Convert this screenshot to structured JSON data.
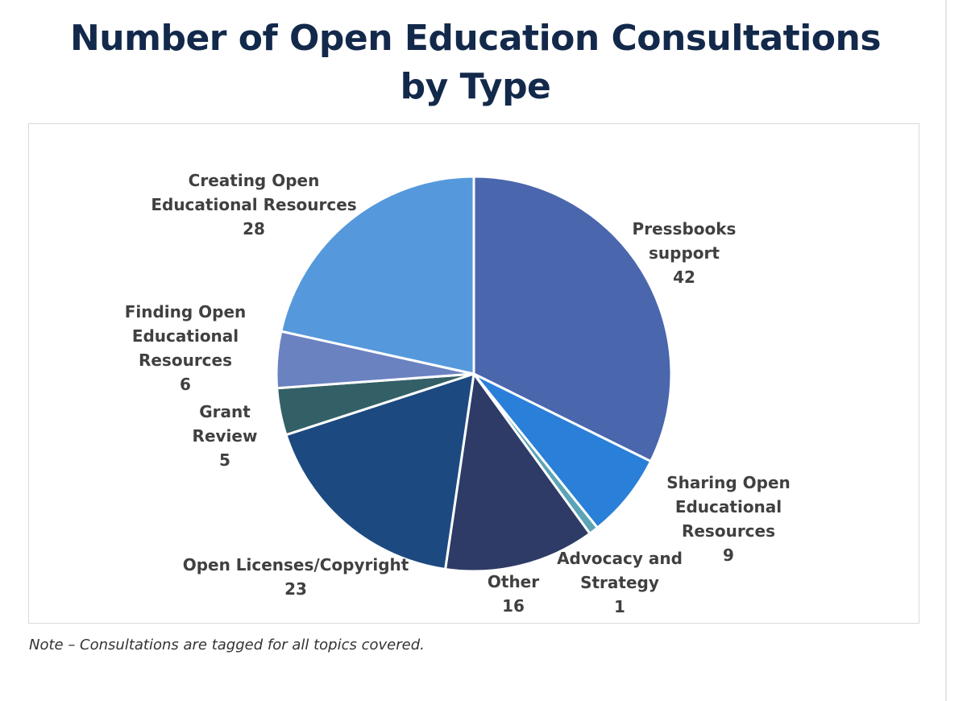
{
  "title": "Number of Open Education Consultations by Type",
  "note": "Note – Consultations are tagged for all topics covered.",
  "chart_data": {
    "type": "pie",
    "title": "Number of Open Education Consultations by Type",
    "start": "12 o'clock",
    "direction": "clockwise",
    "slices": [
      {
        "label_lines": [
          "Pressbooks",
          "support"
        ],
        "label": "Pressbooks support",
        "value": 42,
        "color": "#4a66ac"
      },
      {
        "label_lines": [
          "Sharing Open",
          "Educational",
          "Resources"
        ],
        "label": "Sharing Open Educational Resources",
        "value": 9,
        "color": "#2a7fd8"
      },
      {
        "label_lines": [
          "Advocacy and",
          "Strategy"
        ],
        "label": "Advocacy and Strategy",
        "value": 1,
        "color": "#5ba4b6"
      },
      {
        "label_lines": [
          "Other"
        ],
        "label": "Other",
        "value": 16,
        "color": "#2d3b66"
      },
      {
        "label_lines": [
          "Open Licenses/Copyright"
        ],
        "label": "Open Licenses/Copyright",
        "value": 23,
        "color": "#1c4a80"
      },
      {
        "label_lines": [
          "Grant",
          "Review"
        ],
        "label": "Grant Review",
        "value": 5,
        "color": "#336066"
      },
      {
        "label_lines": [
          "Finding Open",
          "Educational",
          "Resources"
        ],
        "label": "Finding Open Educational Resources",
        "value": 6,
        "color": "#6b82c1"
      },
      {
        "label_lines": [
          "Creating Open",
          "Educational Resources"
        ],
        "label": "Creating Open Educational Resources",
        "value": 28,
        "color": "#5599dc"
      }
    ]
  }
}
